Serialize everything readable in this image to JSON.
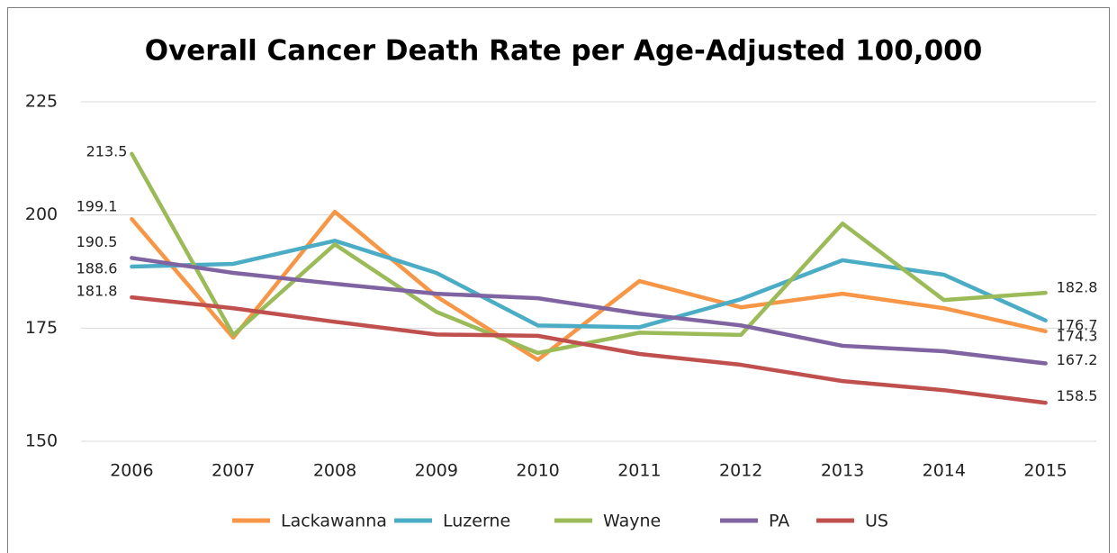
{
  "chart_data": {
    "type": "line",
    "title": "Overall Cancer Death Rate per Age-Adjusted 100,000",
    "categories": [
      "2006",
      "2007",
      "2008",
      "2009",
      "2010",
      "2011",
      "2012",
      "2013",
      "2014",
      "2015"
    ],
    "series": [
      {
        "name": "Lackawanna",
        "color": "#f79646",
        "values": [
          199.1,
          172.9,
          200.7,
          182,
          168,
          185.4,
          179.6,
          182.6,
          179.4,
          174.3
        ]
      },
      {
        "name": "Luzerne",
        "color": "#4bacc6",
        "values": [
          188.6,
          189.2,
          194.3,
          187.2,
          175.6,
          175.2,
          181.4,
          190,
          186.8,
          176.7
        ]
      },
      {
        "name": "Wayne",
        "color": "#9bbb59",
        "values": [
          213.5,
          173.5,
          193.5,
          178.6,
          169.5,
          174,
          173.5,
          198.1,
          181.2,
          182.8
        ]
      },
      {
        "name": "PA",
        "color": "#8064a2",
        "values": [
          190.5,
          187.2,
          184.8,
          182.6,
          181.6,
          178.2,
          175.6,
          171.1,
          169.9,
          167.2
        ]
      },
      {
        "name": "US",
        "color": "#c0504d",
        "values": [
          181.8,
          179.4,
          176.4,
          173.6,
          173.3,
          169.3,
          166.9,
          163.3,
          161.3,
          158.5
        ]
      }
    ],
    "ylim": [
      150,
      225
    ],
    "yticks": [
      150,
      175,
      200,
      225
    ],
    "grid": true,
    "legend": "bottom"
  }
}
